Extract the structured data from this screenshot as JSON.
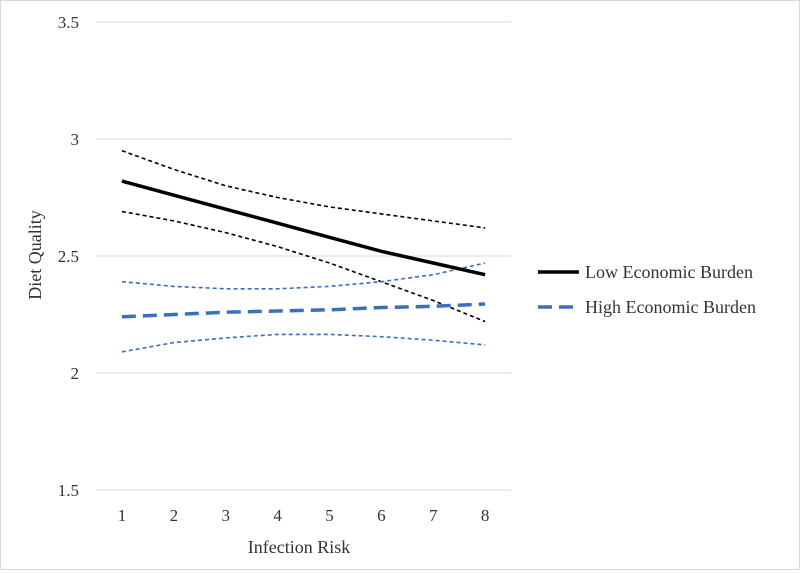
{
  "chart_data": {
    "type": "line",
    "title": "",
    "xlabel": "Infection Risk",
    "ylabel": "Diet Quality",
    "x": [
      1,
      2,
      3,
      4,
      5,
      6,
      7,
      8
    ],
    "ylim": [
      1.5,
      3.5
    ],
    "yticks": [
      "1.5",
      "2",
      "2.5",
      "3",
      "3.5"
    ],
    "grid": "horizontal",
    "legend_position": "right",
    "series": [
      {
        "name": "Low Economic Burden",
        "color": "#000000",
        "style": "solid",
        "values": [
          2.82,
          2.76,
          2.7,
          2.64,
          2.58,
          2.52,
          2.47,
          2.42
        ],
        "ci_upper": [
          2.95,
          2.87,
          2.8,
          2.75,
          2.71,
          2.68,
          2.65,
          2.62
        ],
        "ci_lower": [
          2.69,
          2.65,
          2.6,
          2.54,
          2.47,
          2.39,
          2.31,
          2.22
        ]
      },
      {
        "name": "High Economic Burden",
        "color": "#3a6fbf",
        "style": "dashed",
        "values": [
          2.24,
          2.25,
          2.26,
          2.265,
          2.27,
          2.28,
          2.285,
          2.295
        ],
        "ci_upper": [
          2.39,
          2.37,
          2.36,
          2.36,
          2.37,
          2.39,
          2.42,
          2.47
        ],
        "ci_lower": [
          2.09,
          2.13,
          2.15,
          2.165,
          2.165,
          2.155,
          2.14,
          2.12
        ]
      }
    ]
  }
}
